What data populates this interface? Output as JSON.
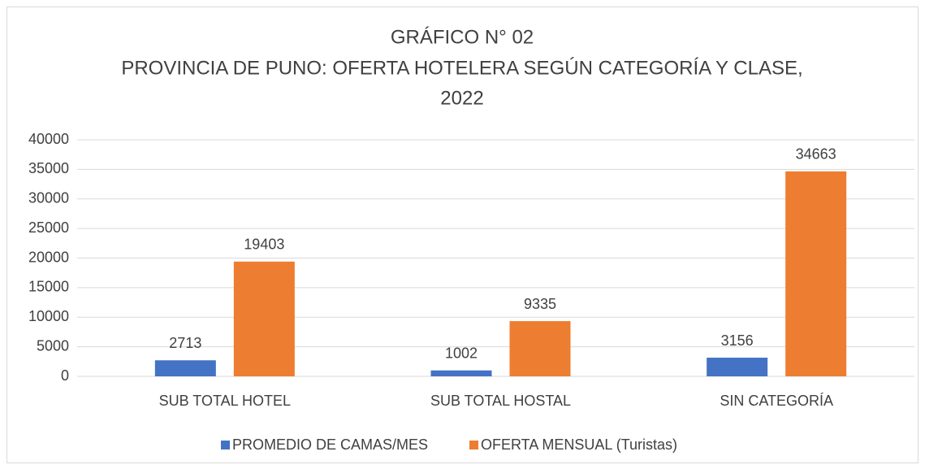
{
  "chart_data": {
    "type": "bar",
    "title": [
      "GRÁFICO N° 02",
      "PROVINCIA DE PUNO: OFERTA HOTELERA SEGÚN CATEGORÍA Y CLASE,",
      "2022"
    ],
    "categories": [
      "SUB TOTAL HOTEL",
      "SUB TOTAL HOSTAL",
      "SIN CATEGORÍA"
    ],
    "series": [
      {
        "name": "PROMEDIO DE CAMAS/MES",
        "color": "#4472c4",
        "values": [
          2713,
          1002,
          3156
        ]
      },
      {
        "name": "OFERTA MENSUAL (Turistas)",
        "color": "#ed7d31",
        "values": [
          19403,
          9335,
          34663
        ]
      }
    ],
    "ylim": [
      0,
      40000
    ],
    "yticks": [
      0,
      5000,
      10000,
      15000,
      20000,
      25000,
      30000,
      35000,
      40000
    ],
    "grid": true,
    "legend": "bottom"
  }
}
